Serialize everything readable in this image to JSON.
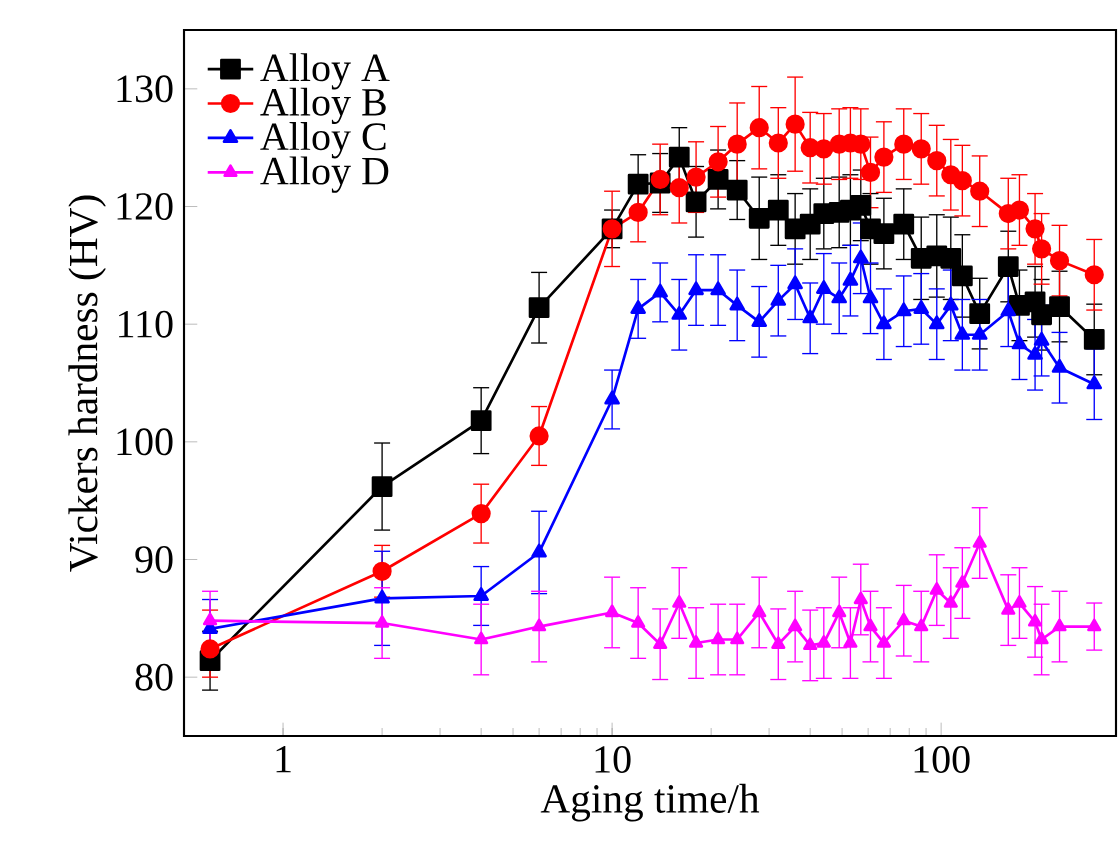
{
  "chart_data": {
    "type": "line",
    "xlabel": "Aging time/h",
    "ylabel": "Vickers hardness (HV)",
    "log": "x",
    "xlim": [
      0.5,
      340
    ],
    "ylim": [
      75,
      135
    ],
    "xticks": [
      1,
      10,
      100
    ],
    "yticks": [
      80,
      90,
      100,
      110,
      120,
      130
    ],
    "grid": false,
    "legend": "top left",
    "line_style": "solid",
    "x": [
      0.6,
      2,
      4,
      6,
      10,
      12,
      14,
      16,
      18,
      21,
      24,
      28,
      32,
      36,
      40,
      44,
      49,
      53,
      57,
      61,
      67,
      77,
      87,
      97,
      107,
      116,
      131,
      160,
      173,
      193,
      202,
      229,
      292
    ],
    "series": [
      {
        "name": "Alloy A",
        "color": "#000000",
        "marker": "square",
        "values": [
          81.4,
          96.2,
          101.8,
          111.4,
          118.1,
          121.9,
          122,
          124.2,
          120.4,
          122.3,
          121.4,
          119,
          119.7,
          118.1,
          118.5,
          119.4,
          119.5,
          119.7,
          120.1,
          118.1,
          117.7,
          118.5,
          115.6,
          115.8,
          115.6,
          114.1,
          110.9,
          114.9,
          111.6,
          111.9,
          110.8,
          111.5,
          108.7
        ],
        "errors": [
          2.5,
          3.7,
          2.8,
          3,
          1.6,
          2.5,
          2.5,
          2.5,
          3,
          2.5,
          2.5,
          3.5,
          3,
          3,
          3,
          3,
          3,
          3,
          3,
          3,
          3,
          3,
          3.5,
          3.5,
          3.5,
          3.5,
          3,
          3,
          3,
          3,
          3,
          3,
          3
        ]
      },
      {
        "name": "Alloy B",
        "color": "#ff0000",
        "marker": "circle",
        "values": [
          82.4,
          89,
          93.9,
          100.5,
          118.1,
          119.5,
          122.3,
          121.6,
          122.5,
          123.8,
          125.3,
          126.7,
          125.4,
          127,
          125,
          124.9,
          125.3,
          125.4,
          125.3,
          122.9,
          124.2,
          125.3,
          124.9,
          123.9,
          122.7,
          122.2,
          121.3,
          119.4,
          119.7,
          118.1,
          116.4,
          115.4,
          114.2
        ],
        "errors": [
          [
            80,
            85.7
          ],
          2.2,
          2.5,
          2.5,
          3.2,
          2.5,
          3,
          3,
          3,
          3,
          3.5,
          3.5,
          3,
          4,
          3,
          3,
          3,
          3,
          3,
          3,
          3,
          3,
          3,
          3,
          3,
          3,
          3,
          3,
          3,
          3,
          3,
          3,
          3
        ]
      },
      {
        "name": "Alloy C",
        "color": "#0000ff",
        "marker": "triangle",
        "values": [
          84.1,
          86.7,
          86.9,
          90.6,
          103.6,
          111.3,
          112.7,
          110.8,
          112.9,
          112.9,
          111.6,
          110.2,
          112,
          113.4,
          110.5,
          113,
          112.2,
          113.7,
          115.6,
          112.2,
          110,
          111.1,
          111.3,
          110,
          111.6,
          109.1,
          109.1,
          111.1,
          108.3,
          107.4,
          108.6,
          106.3,
          104.9
        ],
        "errors": [
          2.5,
          4,
          2.5,
          3.5,
          2.5,
          2.5,
          2.5,
          3,
          3,
          3,
          3,
          3,
          3,
          3,
          3,
          3,
          3,
          3,
          3,
          3,
          3,
          3,
          3,
          3,
          3,
          3,
          3,
          3,
          3,
          3,
          3,
          3,
          3
        ]
      },
      {
        "name": "Alloy D",
        "color": "#ff00ff",
        "marker": "triangle",
        "values": [
          84.8,
          84.6,
          83.2,
          84.3,
          85.5,
          84.6,
          82.8,
          86.3,
          82.9,
          83.2,
          83.2,
          85.5,
          82.8,
          84.3,
          82.7,
          82.9,
          85.5,
          82.9,
          86.6,
          84.3,
          82.9,
          84.8,
          84.3,
          87.4,
          86.3,
          88,
          91.4,
          85.7,
          86.3,
          84.7,
          83.2,
          84.3,
          84.3
        ],
        "errors": [
          2.5,
          3,
          3,
          3,
          3,
          3,
          3,
          3,
          3,
          3,
          3,
          3,
          3,
          3,
          3,
          3,
          3,
          3,
          3,
          3,
          3,
          3,
          3,
          3,
          3,
          3,
          3,
          3,
          3,
          3,
          3,
          3,
          2
        ]
      }
    ]
  }
}
